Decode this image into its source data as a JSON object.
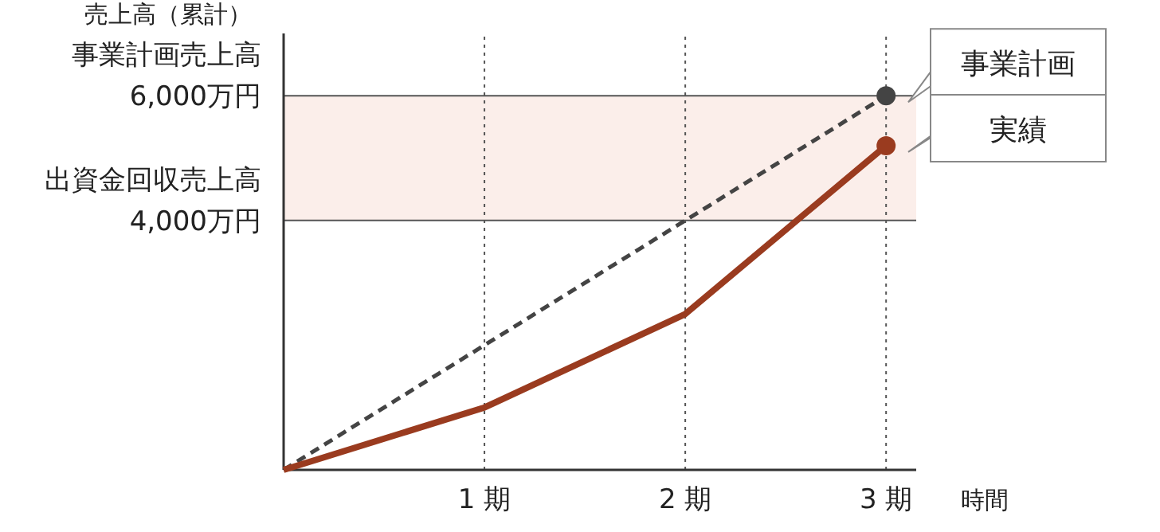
{
  "chart_data": {
    "type": "line",
    "ylabel": "売上高（累計）",
    "xlabel": "時間",
    "x": [
      0,
      1,
      2,
      3
    ],
    "series": [
      {
        "name": "事業計画",
        "color": "#444444",
        "line_style": "dashed",
        "values": [
          0,
          2000,
          4000,
          6000
        ]
      },
      {
        "name": "実績",
        "color": "#9a3b1f",
        "line_style": "solid",
        "values": [
          0,
          1000,
          2500,
          5200
        ]
      }
    ],
    "xlim": [
      0,
      3.15
    ],
    "ylim": [
      0,
      7000
    ],
    "xticks": [
      {
        "value": 1,
        "label": "1 期"
      },
      {
        "value": 2,
        "label": "2 期"
      },
      {
        "value": 3,
        "label": "3 期"
      }
    ],
    "yticks": [
      {
        "value": 4000,
        "label": "4,000万円"
      },
      {
        "value": 6000,
        "label": "6,000万円"
      }
    ],
    "grid": "x",
    "ref_lines": [
      {
        "axis": "y",
        "value": 6000,
        "label": "事業計画売上高",
        "color": "#555555"
      },
      {
        "axis": "y",
        "value": 4000,
        "label": "出資金回収売上高",
        "color": "#555555"
      }
    ],
    "bands": [
      {
        "axis": "y",
        "from": 4000,
        "to": 6000,
        "color": "#fbeeea"
      }
    ]
  }
}
